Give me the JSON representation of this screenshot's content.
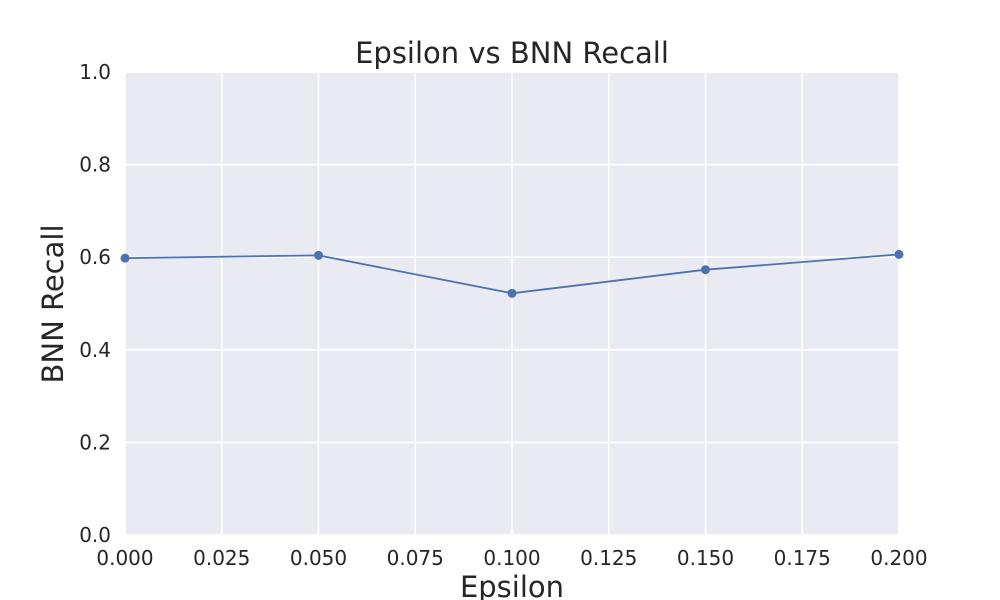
{
  "chart_data": {
    "type": "line",
    "title": "Epsilon vs BNN Recall",
    "xlabel": "Epsilon",
    "ylabel": "BNN Recall",
    "xlim": [
      0.0,
      0.2
    ],
    "ylim": [
      0.0,
      1.0
    ],
    "xticks": [
      "0.000",
      "0.025",
      "0.050",
      "0.075",
      "0.100",
      "0.125",
      "0.150",
      "0.175",
      "0.200"
    ],
    "yticks": [
      "0.0",
      "0.2",
      "0.4",
      "0.6",
      "0.8",
      "1.0"
    ],
    "grid": true,
    "series": [
      {
        "x": [
          0.0,
          0.05,
          0.1,
          0.15,
          0.2
        ],
        "y": [
          0.598,
          0.604,
          0.522,
          0.573,
          0.606
        ]
      }
    ]
  },
  "colors": {
    "plot_background": "#eaeaf2",
    "grid": "#ffffff",
    "line": "#4c72b0",
    "text": "#262626"
  }
}
